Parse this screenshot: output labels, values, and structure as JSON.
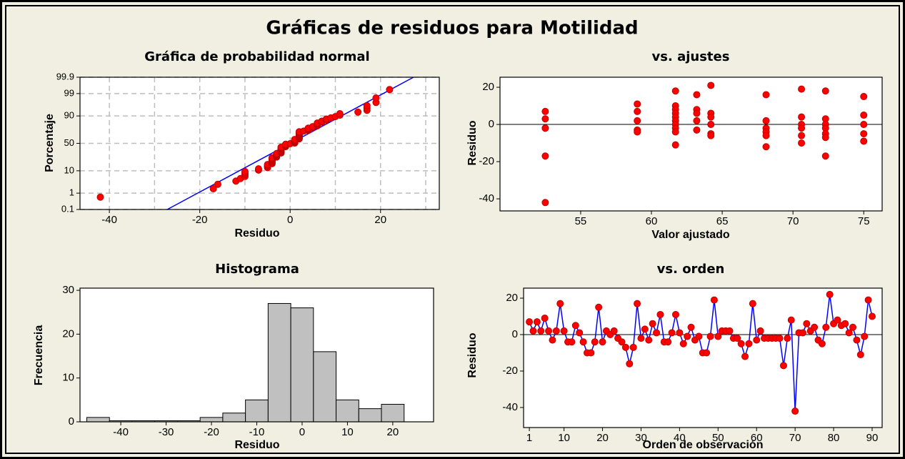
{
  "title": "Gráficas de residuos para Motilidad",
  "chart_data": [
    {
      "type": "probability",
      "title": "Gráfica de probabilidad normal",
      "xlabel": "Residuo",
      "ylabel": "Porcentaje",
      "yscale": "normal-probability",
      "grid": true,
      "color": "#ff0000",
      "line_color": "#0000ff",
      "xlim": [
        -46.5,
        33
      ],
      "ylim": [
        0.1,
        99.9
      ],
      "xticks": [
        -40,
        -20,
        0,
        20
      ],
      "xgrid": [
        -40,
        -30,
        -20,
        -10,
        0,
        10,
        20,
        30
      ],
      "yticks": [
        0.1,
        1,
        10,
        50,
        90,
        99,
        99.9
      ],
      "x": [
        -42,
        -17,
        -16,
        -12,
        -11,
        -10,
        -10,
        -10,
        -10,
        -7,
        -7,
        -5,
        -5,
        -5,
        -5,
        -4,
        -4,
        -4,
        -4,
        -4,
        -4,
        -4,
        -4,
        -3,
        -3,
        -3,
        -3,
        -3,
        -3,
        -2,
        -2,
        -2,
        -2,
        -2,
        -2,
        -2,
        -2,
        -2,
        -2,
        -1,
        -1,
        -1,
        -1,
        -1,
        0,
        1,
        1,
        1,
        1,
        1,
        1,
        1,
        2,
        2,
        2,
        2,
        2,
        2,
        2,
        2,
        2,
        2,
        2,
        2,
        3,
        4,
        4,
        4,
        4,
        5,
        5,
        6,
        6,
        6,
        6,
        7,
        7,
        8,
        8,
        9,
        10,
        11,
        11,
        15,
        17,
        17,
        17,
        19,
        19,
        22
      ],
      "values": [
        0.6,
        1.7,
        2.8,
        3.9,
        5.0,
        6.1,
        7.2,
        8.3,
        9.4,
        10.6,
        11.7,
        12.8,
        13.9,
        15.0,
        16.1,
        17.2,
        18.3,
        19.4,
        20.6,
        21.7,
        22.8,
        23.9,
        25.0,
        26.1,
        27.2,
        28.3,
        29.4,
        30.6,
        31.7,
        32.8,
        33.9,
        35.0,
        36.1,
        37.2,
        38.3,
        39.4,
        40.6,
        41.7,
        42.8,
        43.9,
        45.0,
        46.1,
        47.2,
        48.3,
        49.4,
        50.6,
        51.7,
        52.8,
        53.9,
        55.0,
        56.1,
        57.2,
        58.3,
        59.4,
        60.6,
        61.7,
        62.8,
        63.9,
        65.0,
        66.1,
        67.2,
        68.3,
        69.4,
        70.6,
        71.7,
        72.8,
        73.9,
        75.0,
        76.1,
        77.2,
        78.3,
        79.4,
        80.6,
        81.7,
        82.8,
        83.9,
        85.0,
        86.1,
        87.2,
        88.3,
        89.4,
        90.6,
        91.7,
        92.8,
        93.9,
        95.0,
        96.1,
        97.2,
        98.3,
        99.4
      ],
      "fit_line": {
        "x": [
          -27.2,
          27.3
        ],
        "y": [
          0.1,
          99.9
        ]
      }
    },
    {
      "type": "scatter",
      "title": "vs. ajustes",
      "xlabel": "Valor ajustado",
      "ylabel": "Residuo",
      "color": "#ff0000",
      "xlim": [
        49.3,
        76.3
      ],
      "ylim": [
        -46.5,
        25.4
      ],
      "xticks": [
        55,
        60,
        65,
        70,
        75
      ],
      "yticks": [
        -40,
        -20,
        0,
        20
      ],
      "reference_line": 0,
      "x": [
        52.5,
        52.5,
        52.5,
        52.5,
        52.5,
        52.5,
        59,
        59,
        59,
        59,
        59,
        61.7,
        61.7,
        61.7,
        61.7,
        61.7,
        61.7,
        61.7,
        61.7,
        61.7,
        61.7,
        63.2,
        63.2,
        63.2,
        63.2,
        63.2,
        64.2,
        64.2,
        64.2,
        64.2,
        64.2,
        64.2,
        68.1,
        68.1,
        68.1,
        68.1,
        68.1,
        68.1,
        70.6,
        70.6,
        70.6,
        70.6,
        70.6,
        70.6,
        72.3,
        72.3,
        72.3,
        72.3,
        72.3,
        72.3,
        72.3,
        75,
        75,
        75,
        75,
        75
      ],
      "values": [
        7,
        3,
        -2,
        -2,
        -17,
        -42,
        11,
        7,
        2,
        -3,
        -4,
        18,
        10,
        8,
        6,
        4,
        2,
        0,
        -2,
        -4,
        -11,
        16,
        8,
        6,
        2,
        -3,
        21,
        6,
        4,
        0,
        -5,
        -6,
        16,
        2,
        -2,
        -4,
        -6,
        -12,
        19,
        4,
        0,
        -2,
        -6,
        -10,
        18,
        3,
        0,
        -2,
        -5,
        -7,
        -17,
        15,
        5,
        0,
        -5,
        -9
      ]
    },
    {
      "type": "histogram",
      "title": "Histograma",
      "xlabel": "Residuo",
      "ylabel": "Frecuencia",
      "color": "#c0c0c0",
      "xlim": [
        -49,
        29
      ],
      "ylim": [
        0,
        30.5
      ],
      "xticks": [
        -40,
        -30,
        -20,
        -10,
        0,
        10,
        20
      ],
      "yticks": [
        0,
        10,
        20,
        30
      ],
      "bins": [
        -47.5,
        -42.5,
        -37.5,
        -32.5,
        -27.5,
        -22.5,
        -17.5,
        -12.5,
        -7.5,
        -2.5,
        2.5,
        7.5,
        12.5,
        17.5,
        22.5
      ],
      "values": [
        1,
        0,
        0,
        0,
        0,
        1,
        2,
        5,
        27,
        26,
        16,
        5,
        3,
        4
      ]
    },
    {
      "type": "line",
      "title": "vs. orden",
      "xlabel": "Orden de observación",
      "ylabel": "Residuo",
      "color": "#ff0000",
      "line_color": "#0000ff",
      "xlim": [
        -0.5,
        92.6
      ],
      "ylim": [
        -51,
        25.5
      ],
      "xticks": [
        1,
        10,
        20,
        30,
        40,
        50,
        60,
        70,
        80,
        90
      ],
      "yticks": [
        -40,
        -20,
        0,
        20
      ],
      "reference_line": 0,
      "x": [
        1,
        2,
        3,
        4,
        5,
        6,
        7,
        8,
        9,
        10,
        11,
        12,
        13,
        14,
        15,
        16,
        17,
        18,
        19,
        20,
        21,
        22,
        23,
        24,
        25,
        26,
        27,
        28,
        29,
        30,
        31,
        32,
        33,
        34,
        35,
        36,
        37,
        38,
        39,
        40,
        41,
        42,
        43,
        44,
        45,
        46,
        47,
        48,
        49,
        50,
        51,
        52,
        53,
        54,
        55,
        56,
        57,
        58,
        59,
        60,
        61,
        62,
        63,
        64,
        65,
        66,
        67,
        68,
        69,
        70,
        71,
        72,
        73,
        74,
        75,
        76,
        77,
        78,
        79,
        80,
        81,
        82,
        83,
        84,
        85,
        86,
        87,
        88,
        89,
        90
      ],
      "values": [
        7,
        2,
        7,
        2,
        9,
        2,
        -3,
        2,
        17,
        2,
        -4,
        -4,
        5,
        1,
        -4,
        -10,
        -10,
        -4,
        15,
        -4,
        2,
        0,
        2,
        -2,
        -4,
        -7,
        -16,
        -7,
        17,
        -2,
        3,
        -3,
        6,
        1,
        11,
        -4,
        -4,
        1,
        11,
        1,
        -5,
        -1,
        4,
        -3,
        -1,
        -10,
        -10,
        -1,
        19,
        -1,
        2,
        2,
        2,
        -2,
        -2,
        -5,
        -12,
        -5,
        17,
        -3,
        2,
        -2,
        -2,
        -2,
        -2,
        -2,
        -17,
        -2,
        8,
        -42,
        1,
        1,
        6,
        2,
        4,
        -3,
        -5,
        4,
        22,
        6,
        8,
        5,
        6,
        1,
        4,
        -3,
        -11,
        -1,
        19,
        10
      ]
    }
  ]
}
